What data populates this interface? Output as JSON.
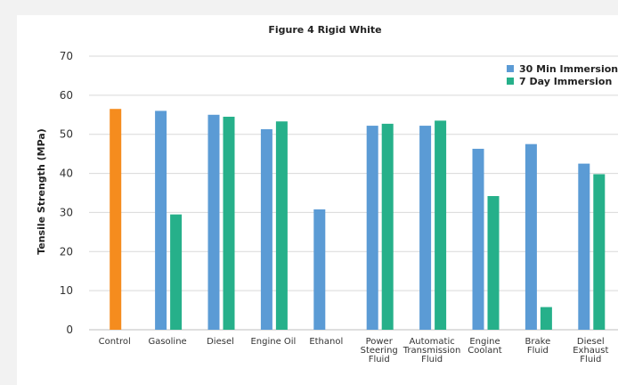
{
  "chart_data": {
    "type": "bar",
    "title": "Figure 4 Rigid White",
    "xlabel": "",
    "ylabel": "Tensile Strength (MPa)",
    "ylim": [
      0,
      70
    ],
    "yticks": [
      0,
      10,
      20,
      30,
      40,
      50,
      60,
      70
    ],
    "grid": true,
    "legend_position": "top-right",
    "categories": [
      [
        "Control"
      ],
      [
        "Gasoline"
      ],
      [
        "Diesel"
      ],
      [
        "Engine Oil"
      ],
      [
        "Ethanol"
      ],
      [
        "Power",
        "Steering",
        "Fluid"
      ],
      [
        "Automatic",
        "Transmission",
        "Fluid"
      ],
      [
        "Engine",
        "Coolant"
      ],
      [
        "Brake",
        "Fluid"
      ],
      [
        "Diesel",
        "Exhaust",
        "Fluid"
      ]
    ],
    "control": {
      "value": 56.5,
      "color": "#f58c1e"
    },
    "series": [
      {
        "name": "30 Min Immersion",
        "color": "#5b9bd5",
        "values": [
          null,
          56,
          55,
          51.3,
          30.8,
          52.2,
          52.2,
          46.3,
          47.5,
          42.5
        ]
      },
      {
        "name": "7 Day Immersion",
        "color": "#26b08a",
        "values": [
          null,
          29.5,
          54.5,
          53.3,
          null,
          52.7,
          53.5,
          34.2,
          5.8,
          39.8
        ]
      }
    ]
  }
}
